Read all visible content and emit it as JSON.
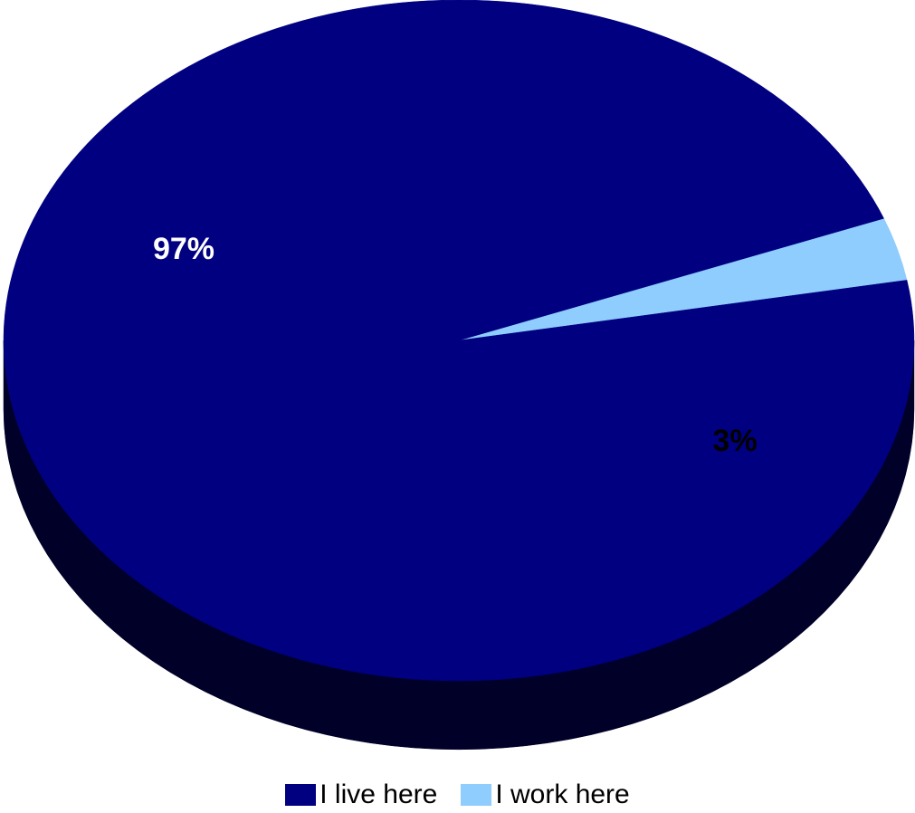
{
  "chart_data": {
    "type": "pie",
    "title": "",
    "categories": [
      "I live here",
      "I work here"
    ],
    "values": [
      97,
      3
    ],
    "labels": [
      "97%",
      "3%"
    ],
    "colors": [
      "#000080",
      "#8ecdfd"
    ],
    "label_colors": [
      "#ffffff",
      "#000000"
    ],
    "legend_position": "bottom",
    "style": "3d"
  },
  "legend": {
    "items": [
      {
        "label": "I live here",
        "color": "#000080"
      },
      {
        "label": "I work here",
        "color": "#8ecdfd"
      }
    ]
  }
}
